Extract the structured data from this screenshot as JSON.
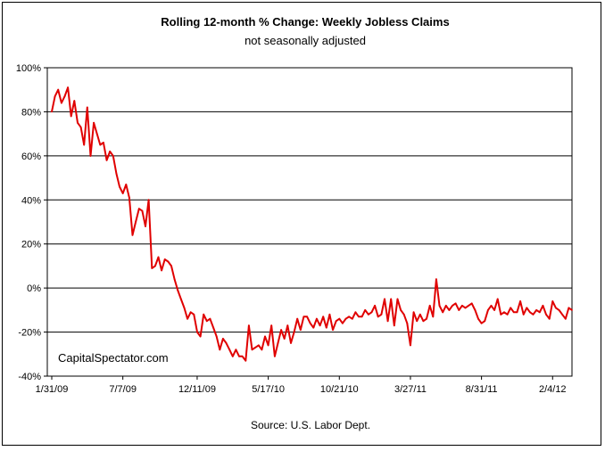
{
  "chart_data": {
    "type": "line",
    "title": "Rolling 12-month %  Change: Weekly Jobless Claims",
    "subtitle": "not seasonally adjusted",
    "source": "Source: U.S. Labor Dept.",
    "watermark": "CapitalSpectator.com",
    "line_color": "#e00000",
    "grid": true,
    "ylim": [
      -40,
      100
    ],
    "y_ticks": [
      {
        "value": 100,
        "label": "100%"
      },
      {
        "value": 80,
        "label": "80%"
      },
      {
        "value": 60,
        "label": "60%"
      },
      {
        "value": 40,
        "label": "40%"
      },
      {
        "value": 20,
        "label": "20%"
      },
      {
        "value": 0,
        "label": "0%"
      },
      {
        "value": -20,
        "label": "-20%"
      },
      {
        "value": -40,
        "label": "-40%"
      }
    ],
    "x_ticks": [
      {
        "index": 0,
        "label": "1/31/09"
      },
      {
        "index": 22,
        "label": "7/7/09"
      },
      {
        "index": 45,
        "label": "12/11/09"
      },
      {
        "index": 67,
        "label": "5/17/10"
      },
      {
        "index": 89,
        "label": "10/21/10"
      },
      {
        "index": 111,
        "label": "3/27/11"
      },
      {
        "index": 133,
        "label": "8/31/11"
      },
      {
        "index": 155,
        "label": "2/4/12"
      }
    ],
    "values": [
      80,
      87,
      90,
      84,
      87,
      91,
      78,
      85,
      75,
      73,
      65,
      82,
      60,
      75,
      70,
      65,
      66,
      58,
      62,
      60,
      52,
      46,
      43,
      47,
      41,
      24,
      30,
      36,
      35,
      28,
      40,
      9,
      10,
      14,
      8,
      13,
      12,
      10,
      4,
      -1,
      -5,
      -9,
      -14,
      -11,
      -12,
      -20,
      -22,
      -12,
      -15,
      -14,
      -18,
      -22,
      -28,
      -23,
      -25,
      -28,
      -31,
      -28,
      -31,
      -31,
      -33,
      -17,
      -28,
      -27,
      -26,
      -28,
      -22,
      -26,
      -17,
      -31,
      -25,
      -19,
      -23,
      -17,
      -25,
      -20,
      -14,
      -19,
      -13,
      -13,
      -16,
      -18,
      -14,
      -17,
      -13,
      -18,
      -12,
      -19,
      -15,
      -14,
      -16,
      -14,
      -13,
      -14,
      -11,
      -13,
      -13,
      -10,
      -12,
      -11,
      -8,
      -13,
      -12,
      -5,
      -15,
      -5,
      -17,
      -5,
      -10,
      -12,
      -16,
      -26,
      -11,
      -15,
      -12,
      -15,
      -14,
      -8,
      -13,
      4,
      -8,
      -11,
      -8,
      -10,
      -8,
      -7,
      -10,
      -8,
      -9,
      -8,
      -7,
      -10,
      -14,
      -16,
      -15,
      -10,
      -8,
      -10,
      -5,
      -12,
      -11,
      -12,
      -9,
      -11,
      -11,
      -6,
      -12,
      -9,
      -11,
      -12,
      -10,
      -11,
      -8,
      -12,
      -14,
      -6,
      -9,
      -10,
      -12,
      -14,
      -9,
      -10
    ]
  }
}
